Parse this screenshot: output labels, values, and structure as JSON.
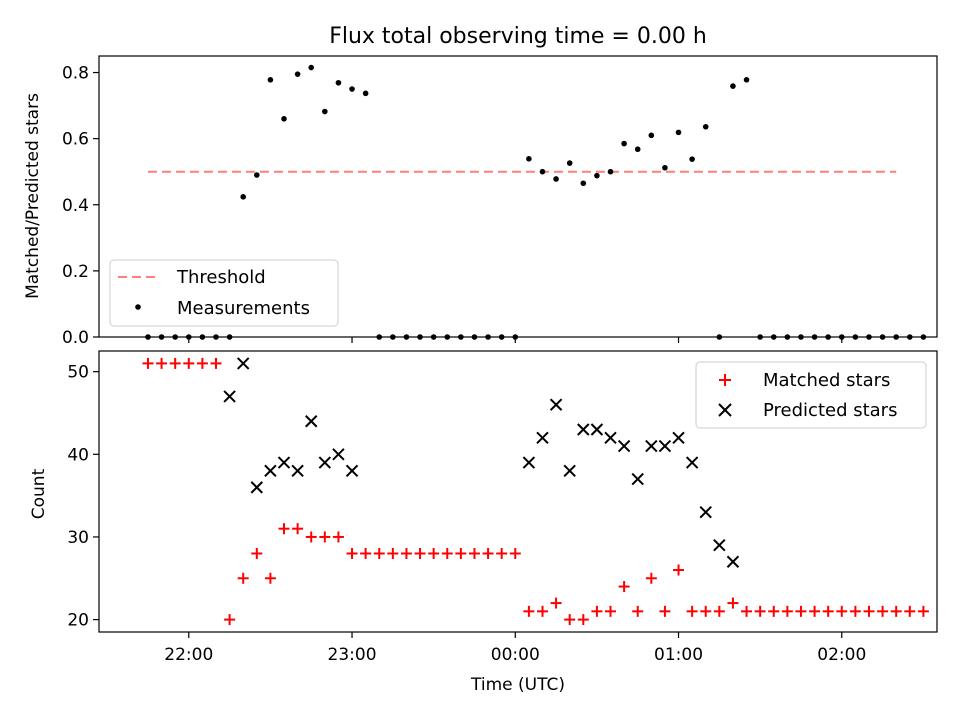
{
  "chart_data": [
    {
      "type": "scatter",
      "title": "Flux total observing time = 0.00 h",
      "xlabel": "",
      "ylabel": "Matched/Predicted stars",
      "ylim": [
        0,
        0.85
      ],
      "yticks": [
        0.0,
        0.2,
        0.4,
        0.6,
        0.8
      ],
      "ytick_labels": [
        "0.0",
        "0.2",
        "0.4",
        "0.6",
        "0.8"
      ],
      "grid": false,
      "legend_position": "lower-left",
      "threshold": {
        "name": "Threshold",
        "y": 0.5,
        "color": "#ff7f7f",
        "style": "dashed",
        "x_start": "21:45",
        "x_end": "02:20"
      },
      "series": [
        {
          "name": "Measurements",
          "marker": "dot",
          "color": "#000000",
          "x": [
            "21:35",
            "21:40",
            "21:45",
            "21:50",
            "21:55",
            "22:00",
            "22:05",
            "22:10",
            "22:15",
            "22:20",
            "22:25",
            "22:30",
            "22:35",
            "22:40",
            "22:45",
            "22:50",
            "22:55",
            "23:00",
            "23:05",
            "23:10",
            "23:15",
            "23:20",
            "23:25",
            "23:30",
            "23:35",
            "23:40",
            "23:45",
            "23:50",
            "23:55",
            "00:00",
            "00:05",
            "00:10",
            "00:15",
            "00:20",
            "00:25",
            "00:30",
            "00:35",
            "00:40",
            "00:45",
            "00:50",
            "00:55",
            "01:00",
            "01:05",
            "01:10",
            "01:15",
            "01:20",
            "01:25",
            "01:30",
            "01:35",
            "01:40",
            "01:45",
            "01:50",
            "01:55",
            "02:00",
            "02:05",
            "02:10",
            "02:15",
            "02:20",
            "02:25",
            "02:30"
          ],
          "y": [
            null,
            null,
            0.0,
            0.0,
            0.0,
            0.0,
            0.0,
            0.0,
            0.0,
            0.424,
            0.49,
            0.778,
            0.66,
            0.795,
            0.815,
            0.682,
            0.769,
            0.75,
            0.737,
            0.0,
            0.0,
            0.0,
            0.0,
            0.0,
            0.0,
            0.0,
            0.0,
            0.0,
            0.0,
            0.0,
            0.539,
            0.5,
            0.478,
            0.526,
            0.465,
            0.488,
            0.5,
            0.585,
            0.568,
            0.61,
            0.512,
            0.619,
            0.538,
            0.636,
            0.0,
            0.759,
            0.778,
            0.0,
            0.0,
            0.0,
            0.0,
            0.0,
            0.0,
            0.0,
            0.0,
            0.0,
            0.0,
            0.0,
            0.0,
            0.0
          ]
        }
      ]
    },
    {
      "type": "scatter",
      "title": "",
      "xlabel": "Time (UTC)",
      "ylabel": "Count",
      "ylim": [
        18.5,
        52.5
      ],
      "yticks": [
        20,
        30,
        40,
        50
      ],
      "ytick_labels": [
        "20",
        "30",
        "40",
        "50"
      ],
      "xtick_labels": [
        "22:00",
        "23:00",
        "00:00",
        "01:00",
        "02:00"
      ],
      "grid": false,
      "legend_position": "top-right",
      "series": [
        {
          "name": "Matched stars",
          "marker": "plus",
          "color": "#ff0000",
          "x": [
            "21:35",
            "21:40",
            "21:45",
            "21:50",
            "21:55",
            "22:00",
            "22:05",
            "22:10",
            "22:15",
            "22:20",
            "22:25",
            "22:30",
            "22:35",
            "22:40",
            "22:45",
            "22:50",
            "22:55",
            "23:00",
            "23:05",
            "23:10",
            "23:15",
            "23:20",
            "23:25",
            "23:30",
            "23:35",
            "23:40",
            "23:45",
            "23:50",
            "23:55",
            "00:00",
            "00:05",
            "00:10",
            "00:15",
            "00:20",
            "00:25",
            "00:30",
            "00:35",
            "00:40",
            "00:45",
            "00:50",
            "00:55",
            "01:00",
            "01:05",
            "01:10",
            "01:15",
            "01:20",
            "01:25",
            "01:30",
            "01:35",
            "01:40",
            "01:45",
            "01:50",
            "01:55",
            "02:00",
            "02:05",
            "02:10",
            "02:15",
            "02:20",
            "02:25",
            "02:30"
          ],
          "y": [
            null,
            null,
            51,
            51,
            51,
            51,
            51,
            51,
            20,
            25,
            28,
            25,
            31,
            31,
            30,
            30,
            30,
            28,
            28,
            28,
            28,
            28,
            28,
            28,
            28,
            28,
            28,
            28,
            28,
            28,
            21,
            21,
            22,
            20,
            20,
            21,
            21,
            24,
            21,
            25,
            21,
            26,
            21,
            21,
            21,
            22,
            21,
            21,
            21,
            21,
            21,
            21,
            21,
            21,
            21,
            21,
            21,
            21,
            21,
            21
          ]
        },
        {
          "name": "Predicted stars",
          "marker": "x",
          "color": "#000000",
          "x": [
            "22:15",
            "22:20",
            "22:25",
            "22:30",
            "22:35",
            "22:40",
            "22:45",
            "22:50",
            "22:55",
            "23:00",
            "00:05",
            "00:10",
            "00:15",
            "00:20",
            "00:25",
            "00:30",
            "00:35",
            "00:40",
            "00:45",
            "00:50",
            "00:55",
            "01:00",
            "01:05",
            "01:10",
            "01:15",
            "01:20",
            "01:25"
          ],
          "y": [
            47,
            51,
            36,
            38,
            39,
            38,
            44,
            39,
            40,
            38,
            39,
            42,
            46,
            38,
            43,
            43,
            42,
            41,
            37,
            41,
            41,
            42,
            39,
            33,
            29,
            27,
            null
          ]
        }
      ],
      "x_range": [
        "21:27",
        "02:35"
      ]
    }
  ]
}
